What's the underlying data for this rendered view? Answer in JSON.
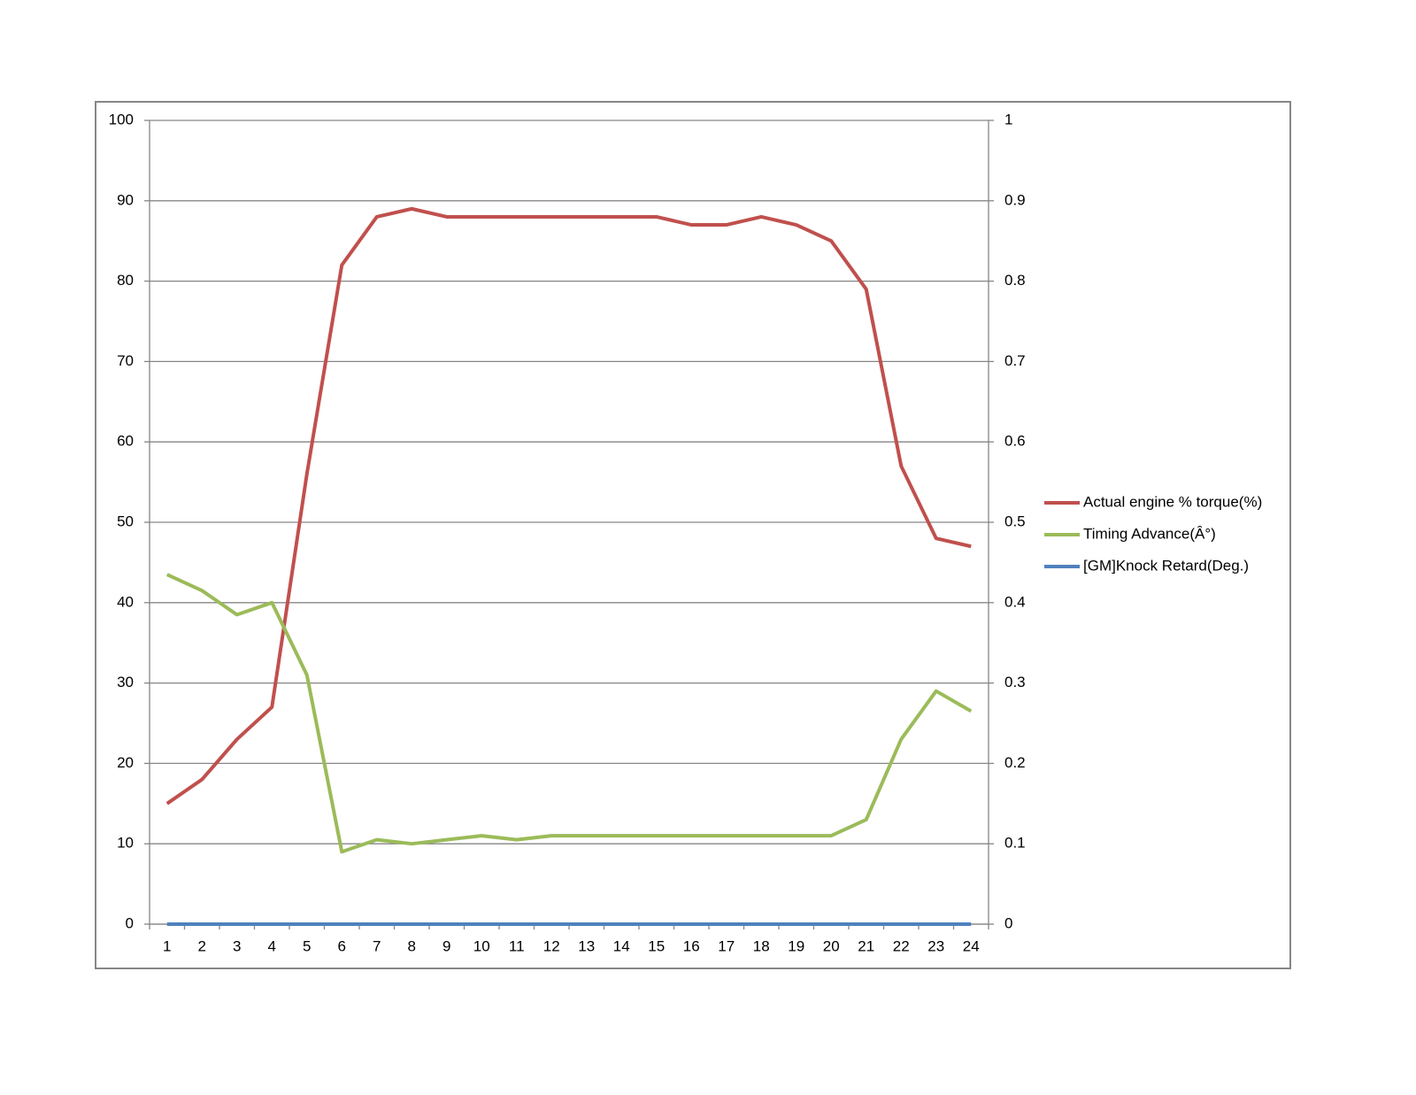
{
  "chart_data": {
    "type": "line",
    "categories": [
      1,
      2,
      3,
      4,
      5,
      6,
      7,
      8,
      9,
      10,
      11,
      12,
      13,
      14,
      15,
      16,
      17,
      18,
      19,
      20,
      21,
      22,
      23,
      24
    ],
    "series": [
      {
        "name": "Actual engine % torque(%)",
        "color": "#c0504d",
        "values": [
          15,
          18,
          23,
          27,
          56,
          82,
          88,
          89,
          88,
          88,
          88,
          88,
          88,
          88,
          88,
          87,
          87,
          88,
          87,
          85,
          79,
          57,
          48,
          47
        ]
      },
      {
        "name": "Timing Advance(Â°)",
        "color": "#9bbb59",
        "values": [
          43.5,
          41.5,
          38.5,
          40,
          31,
          9,
          10.5,
          10,
          10.5,
          11,
          10.5,
          11,
          11,
          11,
          11,
          11,
          11,
          11,
          11,
          11,
          13,
          23,
          29,
          26.5
        ]
      },
      {
        "name": "[GM]Knock Retard(Deg.)",
        "color": "#4f81bd",
        "axis": "y2",
        "values": [
          0,
          0,
          0,
          0,
          0,
          0,
          0,
          0,
          0,
          0,
          0,
          0,
          0,
          0,
          0,
          0,
          0,
          0,
          0,
          0,
          0,
          0,
          0,
          0
        ]
      }
    ],
    "ylim": [
      0,
      100
    ],
    "yticks": [
      0,
      10,
      20,
      30,
      40,
      50,
      60,
      70,
      80,
      90,
      100
    ],
    "y2lim": [
      0,
      1
    ],
    "y2ticks": [
      0,
      0.1,
      0.2,
      0.3,
      0.4,
      0.5,
      0.6,
      0.7,
      0.8,
      0.9,
      1
    ],
    "grid": true,
    "legend": "right"
  }
}
